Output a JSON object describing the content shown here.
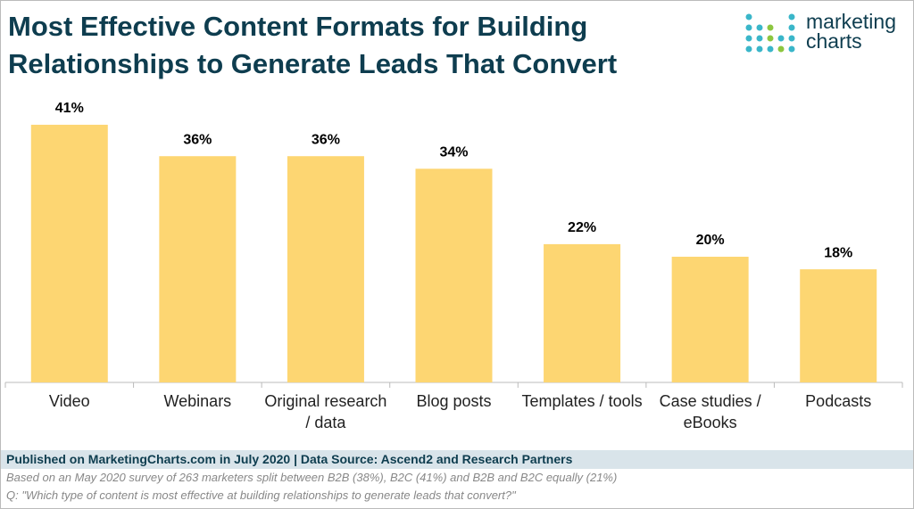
{
  "chart_data": {
    "type": "bar",
    "title": "Most Effective Content Formats for Building Relationships to Generate Leads That Convert",
    "logo": [
      "marketing",
      "charts"
    ],
    "categories": [
      "Video",
      "Webinars",
      "Original research / data",
      "Blog posts",
      "Templates / tools",
      "Case studies / eBooks",
      "Podcasts"
    ],
    "values": [
      41,
      36,
      36,
      34,
      22,
      20,
      18
    ],
    "value_labels": [
      "41%",
      "36%",
      "36%",
      "34%",
      "22%",
      "20%",
      "18%"
    ],
    "color": "#fdd672",
    "source": "Published on MarketingCharts.com in July 2020 | Data Source: Ascend2 and Research Partners",
    "notes": [
      "Based on an May 2020 survey of 263 marketers split between B2B (38%), B2C (41%) and B2B and B2C equally (21%)",
      "Q: \"Which type of content is most effective at building relationships to generate leads that convert?\""
    ]
  }
}
